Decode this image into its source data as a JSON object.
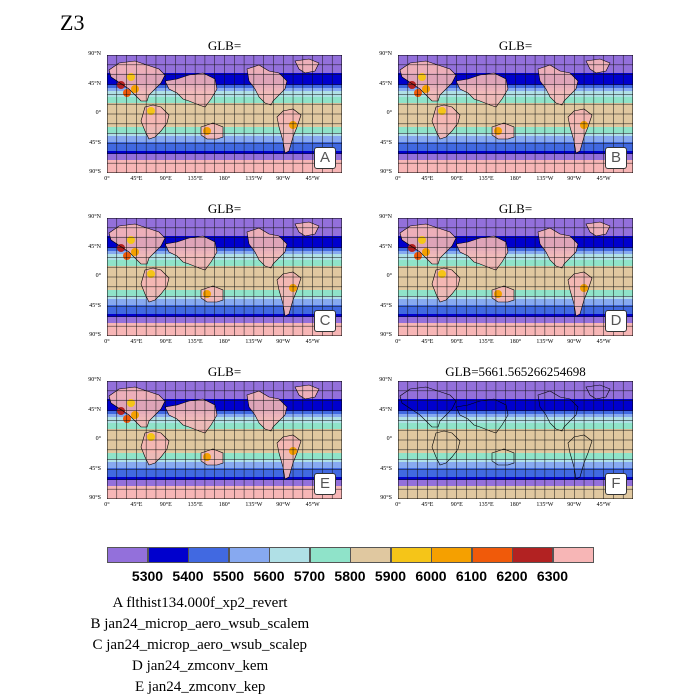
{
  "figure_title": "Z3",
  "chart_data": {
    "type": "heatmap",
    "variable": "Z3",
    "map_projection": "cylindrical equidistant",
    "lat_ticks": [
      "90°N",
      "45°N",
      "0°",
      "45°S",
      "90°S"
    ],
    "lon_ticks": [
      "0°",
      "45°E",
      "90°E",
      "135°E",
      "180°",
      "135°W",
      "90°W",
      "45°W"
    ],
    "panels": [
      {
        "title": "GLB=",
        "letter": "A"
      },
      {
        "title": "GLB=",
        "letter": "B"
      },
      {
        "title": "GLB=",
        "letter": "C"
      },
      {
        "title": "GLB=",
        "letter": "D"
      },
      {
        "title": "GLB=",
        "letter": "E"
      },
      {
        "title": "GLB=5661.565266254698",
        "letter": "F"
      }
    ],
    "colorbar": {
      "levels": [
        5300,
        5400,
        5500,
        5600,
        5700,
        5800,
        5900,
        6000,
        6100,
        6200,
        6300
      ],
      "labels": [
        "5300",
        "5400",
        "5500",
        "5600",
        "5700",
        "5800",
        "5900",
        "6000",
        "6100",
        "6200",
        "6300"
      ],
      "colors": [
        "#9370db",
        "#0000cd",
        "#4169e1",
        "#87a9f0",
        "#b0e0e6",
        "#8fe3c9",
        "#e0c8a0",
        "#f5c518",
        "#f5a000",
        "#f05a0a",
        "#b22222",
        "#f7b6b6"
      ]
    },
    "legend": [
      {
        "letter": "A",
        "name": "flthist134.000f_xp2_revert"
      },
      {
        "letter": "B",
        "name": "jan24_microp_aero_wsub_scalem"
      },
      {
        "letter": "C",
        "name": "jan24_microp_aero_wsub_scalep"
      },
      {
        "letter": "D",
        "name": "jan24_zmconv_kem"
      },
      {
        "letter": "E",
        "name": "jan24_zmconv_kep"
      }
    ]
  }
}
